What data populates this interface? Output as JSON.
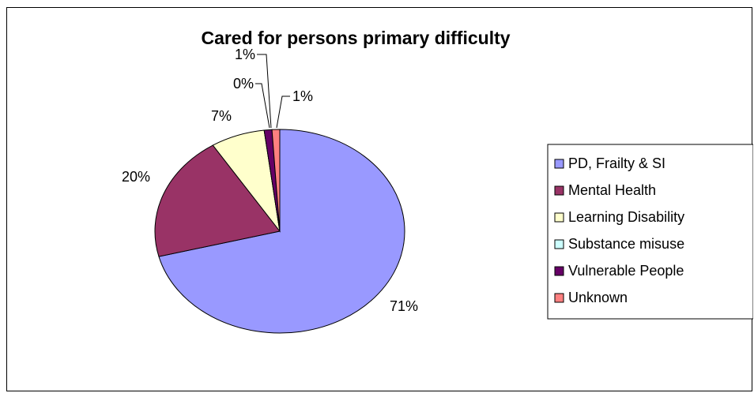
{
  "chart_data": {
    "type": "pie",
    "title": "Cared for persons primary difficulty",
    "categories": [
      "PD, Frailty & SI",
      "Mental Health",
      "Learning Disability",
      "Substance misuse",
      "Vulnerable People",
      "Unknown"
    ],
    "values": [
      71,
      20,
      7,
      0,
      1,
      1
    ],
    "value_labels": [
      "71%",
      "20%",
      "7%",
      "0%",
      "1%",
      "1%"
    ],
    "colors": [
      "#9999FF",
      "#993366",
      "#FFFFCC",
      "#CCFFFF",
      "#660066",
      "#FF8080"
    ],
    "legend_position": "right"
  }
}
